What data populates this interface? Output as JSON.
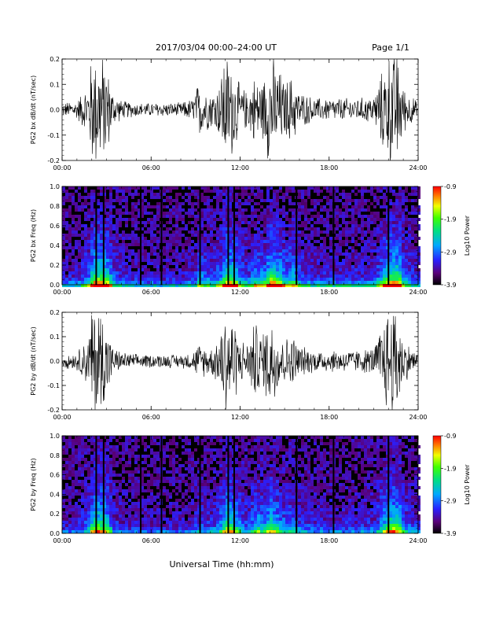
{
  "header": {
    "date_range": "2017/03/04  00:00–24:00 UT",
    "page": "Page 1/1"
  },
  "x_axis_title": "Universal Time (hh:mm)",
  "chart_data": [
    {
      "type": "line",
      "ylabel": "PG2 bx dB/dt (nT/sec)",
      "xlim": [
        0,
        24
      ],
      "ylim": [
        -0.2,
        0.2
      ],
      "x_ticklabels": [
        "00:00",
        "06:00",
        "12:00",
        "18:00",
        "24:00"
      ],
      "y_ticklabels": [
        "-0.2",
        "-0.1",
        "0.0",
        "0.1",
        "0.2"
      ],
      "series": [
        {
          "envelope_x_hours": [
            0,
            1,
            1.8,
            2.0,
            2.2,
            2.6,
            3.0,
            3.4,
            4,
            5,
            6,
            7,
            8,
            8.8,
            9.2,
            9.5,
            10,
            10.5,
            11,
            11.5,
            12,
            12.5,
            13,
            13.5,
            14,
            14.5,
            15,
            15.5,
            16,
            17,
            18,
            19,
            20,
            21,
            21.5,
            22.0,
            22.3,
            22.6,
            23,
            24
          ],
          "envelope_amplitude": [
            0.03,
            0.04,
            0.12,
            0.25,
            0.25,
            0.25,
            0.2,
            0.08,
            0.04,
            0.03,
            0.03,
            0.03,
            0.03,
            0.05,
            0.12,
            0.1,
            0.08,
            0.1,
            0.25,
            0.2,
            0.1,
            0.08,
            0.15,
            0.12,
            0.25,
            0.2,
            0.12,
            0.15,
            0.08,
            0.05,
            0.05,
            0.05,
            0.05,
            0.06,
            0.15,
            0.25,
            0.25,
            0.25,
            0.1,
            0.03
          ]
        }
      ]
    },
    {
      "type": "heatmap",
      "ylabel": "PG2 bx Freq (Hz)",
      "xlim": [
        0,
        24
      ],
      "ylim": [
        0,
        1.0
      ],
      "x_ticklabels": [
        "00:00",
        "06:00",
        "12:00",
        "18:00",
        "24:00"
      ],
      "y_ticklabels": [
        "0.0",
        "0.2",
        "0.4",
        "0.6",
        "0.8",
        "1.0"
      ],
      "colorbar": {
        "label": "Log10 Power",
        "range": [
          -3.9,
          -0.9
        ],
        "ticklabels": [
          "-0.9",
          "-1.9",
          "-2.9",
          "-3.9"
        ]
      },
      "vertical_gap_lines_hours": [
        2.3,
        2.8,
        5.3,
        6.7,
        9.3,
        11.2,
        11.6,
        15.8,
        18.3,
        22.0
      ]
    },
    {
      "type": "line",
      "ylabel": "PG2 by dB/dt (nT/sec)",
      "xlim": [
        0,
        24
      ],
      "ylim": [
        -0.2,
        0.2
      ],
      "x_ticklabels": [
        "00:00",
        "06:00",
        "12:00",
        "18:00",
        "24:00"
      ],
      "y_ticklabels": [
        "-0.2",
        "-0.1",
        "0.0",
        "0.1",
        "0.2"
      ],
      "series": [
        {
          "envelope_x_hours": [
            0,
            1,
            1.8,
            2.0,
            2.2,
            2.6,
            3.0,
            3.4,
            4,
            5,
            6,
            7,
            8,
            8.8,
            9.2,
            9.5,
            10,
            10.5,
            11,
            11.5,
            12,
            12.5,
            13,
            13.5,
            14,
            14.5,
            15,
            15.5,
            16,
            17,
            18,
            19,
            20,
            21,
            21.5,
            22.0,
            22.3,
            22.6,
            23,
            24
          ],
          "envelope_amplitude": [
            0.03,
            0.04,
            0.12,
            0.25,
            0.25,
            0.25,
            0.18,
            0.06,
            0.04,
            0.03,
            0.03,
            0.03,
            0.03,
            0.04,
            0.08,
            0.07,
            0.06,
            0.1,
            0.25,
            0.2,
            0.1,
            0.08,
            0.18,
            0.12,
            0.22,
            0.15,
            0.1,
            0.12,
            0.07,
            0.05,
            0.05,
            0.05,
            0.05,
            0.06,
            0.15,
            0.25,
            0.25,
            0.25,
            0.1,
            0.03
          ]
        }
      ]
    },
    {
      "type": "heatmap",
      "ylabel": "PG2 by Freq (Hz)",
      "xlim": [
        0,
        24
      ],
      "ylim": [
        0,
        1.0
      ],
      "x_ticklabels": [
        "00:00",
        "06:00",
        "12:00",
        "18:00",
        "24:00"
      ],
      "y_ticklabels": [
        "0.0",
        "0.2",
        "0.4",
        "0.6",
        "0.8",
        "1.0"
      ],
      "colorbar": {
        "label": "Log10 Power",
        "range": [
          -3.9,
          -0.9
        ],
        "ticklabels": [
          "-0.9",
          "-1.9",
          "-2.9",
          "-3.9"
        ]
      },
      "vertical_gap_lines_hours": [
        2.3,
        2.8,
        5.3,
        6.7,
        9.3,
        11.2,
        11.6,
        15.8,
        18.3,
        22.0
      ]
    }
  ]
}
